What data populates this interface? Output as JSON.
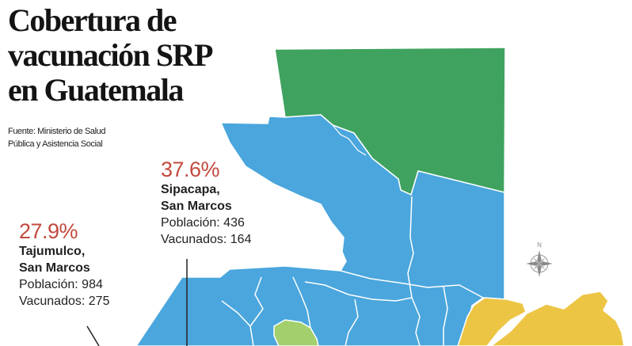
{
  "title": {
    "lines": [
      "Cobertura de",
      "vacunación SRP",
      "en Guatemala"
    ]
  },
  "source": {
    "lines": [
      "Fuente: Ministerio de Salud",
      "Pública y Asistencia Social"
    ]
  },
  "callouts": [
    {
      "percent": "37.6%",
      "place_lines": [
        "Sipacapa,",
        "San Marcos"
      ],
      "population": "Población: 436",
      "vaccinated": "Vacunados: 164"
    },
    {
      "percent": "27.9%",
      "place_lines": [
        "Tajumulco,",
        "San Marcos"
      ],
      "population": "Población: 984",
      "vaccinated": "Vacunados: 275"
    }
  ],
  "compass": {
    "north_label": "N",
    "icon": "compass-rose-icon"
  },
  "colors": {
    "blue_region": "#4aa6dd",
    "green_region": "#3fa35f",
    "yellow_region": "#ecc544",
    "light_green_region": "#a3cf6c",
    "percent_text": "#c24a3e"
  }
}
